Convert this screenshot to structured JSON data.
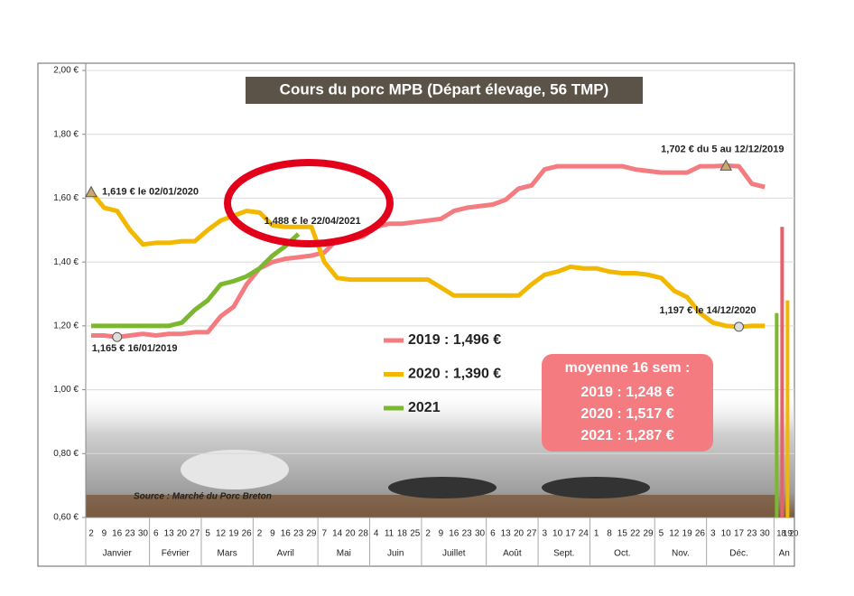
{
  "chart_data": {
    "type": "line",
    "title": "Cours du porc MPB (Départ élevage, 56 TMP)",
    "source": "Source : Marché du Porc Breton",
    "ylim": [
      0.6,
      2.0
    ],
    "yticks": [
      {
        "value": 0.6,
        "label": "0,60 €"
      },
      {
        "value": 0.8,
        "label": "0,80 €"
      },
      {
        "value": 1.0,
        "label": "1,00 €"
      },
      {
        "value": 1.2,
        "label": "1,20 €"
      },
      {
        "value": 1.4,
        "label": "1,40 €"
      },
      {
        "value": 1.6,
        "label": "1,60 €"
      },
      {
        "value": 1.8,
        "label": "1,80 €"
      },
      {
        "value": 2.0,
        "label": "2,00 €"
      }
    ],
    "grid": true,
    "months": [
      {
        "name": "Janvier",
        "weeks": [
          "2",
          "9",
          "16",
          "23",
          "30"
        ]
      },
      {
        "name": "Février",
        "weeks": [
          "6",
          "13",
          "20",
          "27"
        ]
      },
      {
        "name": "Mars",
        "weeks": [
          "5",
          "12",
          "19",
          "26"
        ]
      },
      {
        "name": "Avril",
        "weeks": [
          "2",
          "9",
          "16",
          "23",
          "29"
        ]
      },
      {
        "name": "Mai",
        "weeks": [
          "7",
          "14",
          "20",
          "28"
        ]
      },
      {
        "name": "Juin",
        "weeks": [
          "4",
          "11",
          "18",
          "25"
        ]
      },
      {
        "name": "Juillet",
        "weeks": [
          "2",
          "9",
          "16",
          "23",
          "30"
        ]
      },
      {
        "name": "Août",
        "weeks": [
          "6",
          "13",
          "20",
          "27"
        ]
      },
      {
        "name": "Sept.",
        "weeks": [
          "3",
          "10",
          "17",
          "24"
        ]
      },
      {
        "name": "Oct.",
        "weeks": [
          "1",
          "8",
          "15",
          "22",
          "29"
        ]
      },
      {
        "name": "Nov.",
        "weeks": [
          "5",
          "12",
          "19",
          "26"
        ]
      },
      {
        "name": "Déc.",
        "weeks": [
          "3",
          "10",
          "17",
          "23",
          "30"
        ]
      }
    ],
    "year_column": {
      "name": "An",
      "labels": [
        "18",
        "19",
        "20"
      ],
      "bars": [
        {
          "color": "#7cb82f",
          "value": 1.24
        },
        {
          "color": "#e8616a",
          "value": 1.51
        },
        {
          "color": "#f2b800",
          "value": 1.28
        }
      ]
    },
    "series": [
      {
        "name": "2019 : 1,496 €",
        "color": "#f47c80",
        "values": [
          1.17,
          1.17,
          1.165,
          1.17,
          1.175,
          1.17,
          1.175,
          1.175,
          1.18,
          1.18,
          1.23,
          1.26,
          1.33,
          1.38,
          1.4,
          1.41,
          1.415,
          1.42,
          1.43,
          1.47,
          1.47,
          1.48,
          1.51,
          1.52,
          1.52,
          1.525,
          1.53,
          1.535,
          1.56,
          1.57,
          1.575,
          1.58,
          1.595,
          1.63,
          1.64,
          1.69,
          1.7,
          1.7,
          1.7,
          1.7,
          1.7,
          1.7,
          1.69,
          1.685,
          1.68,
          1.68,
          1.68,
          1.7,
          1.7,
          1.702,
          1.7,
          1.645,
          1.635
        ]
      },
      {
        "name": "2020 : 1,390 €",
        "color": "#f2b800",
        "values": [
          1.619,
          1.57,
          1.56,
          1.5,
          1.455,
          1.46,
          1.46,
          1.465,
          1.465,
          1.5,
          1.53,
          1.545,
          1.56,
          1.555,
          1.515,
          1.51,
          1.51,
          1.51,
          1.4,
          1.35,
          1.345,
          1.345,
          1.345,
          1.345,
          1.345,
          1.345,
          1.345,
          1.32,
          1.295,
          1.295,
          1.295,
          1.295,
          1.295,
          1.295,
          1.33,
          1.36,
          1.37,
          1.385,
          1.38,
          1.38,
          1.37,
          1.365,
          1.365,
          1.36,
          1.35,
          1.31,
          1.29,
          1.24,
          1.21,
          1.2,
          1.197,
          1.2,
          1.2
        ]
      },
      {
        "name": "2021",
        "color": "#7cb82f",
        "values": [
          1.2,
          1.2,
          1.2,
          1.2,
          1.2,
          1.2,
          1.2,
          1.21,
          1.25,
          1.28,
          1.33,
          1.34,
          1.355,
          1.38,
          1.42,
          1.45,
          1.488,
          null,
          null,
          null,
          null,
          null,
          null,
          null,
          null,
          null,
          null,
          null,
          null,
          null,
          null,
          null,
          null,
          null,
          null,
          null,
          null,
          null,
          null,
          null,
          null,
          null,
          null,
          null,
          null,
          null,
          null,
          null,
          null,
          null,
          null,
          null,
          null
        ]
      }
    ],
    "annotations": [
      {
        "text": "1,619 € le 02/01/2020",
        "series": 1,
        "index": 0,
        "marker": "triangle"
      },
      {
        "text": "1,165 € 16/01/2019",
        "series": 0,
        "index": 2,
        "marker": "circle"
      },
      {
        "text": "1,488 € le 22/04/2021",
        "series": 2,
        "index": 16,
        "marker": "none"
      },
      {
        "text": "1,702 € du 5 au 12/12/2019",
        "series": 0,
        "index": 49,
        "marker": "triangle"
      },
      {
        "text": "1,197 € le 14/12/2020",
        "series": 1,
        "index": 50,
        "marker": "circle"
      }
    ],
    "average_box": {
      "title": "moyenne 16 sem :",
      "lines": [
        "2019 :  1,248 €",
        "2020 :  1,517 €",
        "2021 :  1,287 €"
      ]
    }
  }
}
